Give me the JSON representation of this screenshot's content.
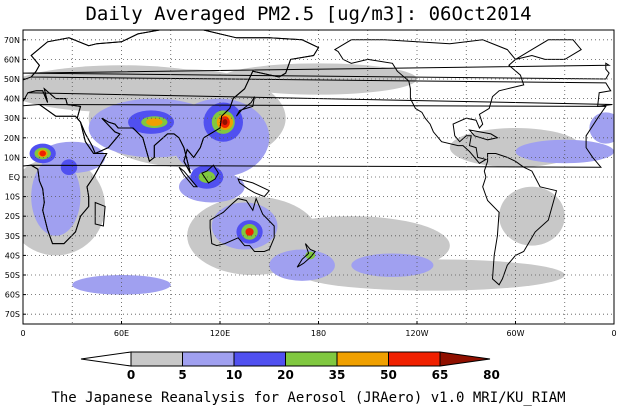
{
  "title": "Daily Averaged PM2.5 [ug/m3]: 06Oct2014",
  "footer": "The Japanese Reanalysis for Aerosol (JRAero) v1.0 MRI/KU_RIAM",
  "map": {
    "projection": "equirectangular",
    "lon_range": [
      0,
      360
    ],
    "lat_range": [
      -75,
      75
    ],
    "grid_style": "dotted",
    "lat_labels": [
      "70N",
      "60N",
      "50N",
      "40N",
      "30N",
      "20N",
      "10N",
      "EQ",
      "10S",
      "20S",
      "30S",
      "40S",
      "50S",
      "60S",
      "70S"
    ],
    "lat_values": [
      70,
      60,
      50,
      40,
      30,
      20,
      10,
      0,
      -10,
      -20,
      -30,
      -40,
      -50,
      -60,
      -70
    ],
    "lon_labels": [
      "0",
      "60E",
      "120E",
      "180",
      "120W",
      "60W",
      "0"
    ],
    "lon_values": [
      0,
      60,
      120,
      180,
      240,
      300,
      360
    ]
  },
  "colorbar": {
    "levels": [
      "0",
      "5",
      "10",
      "20",
      "35",
      "50",
      "65",
      "80"
    ],
    "colors": [
      "#ffffff",
      "#c8c8c8",
      "#a0a0f0",
      "#5050f0",
      "#80c840",
      "#f0a000",
      "#f02000",
      "#901000"
    ]
  },
  "colors": {
    "land_outline": "#000000",
    "background": "#ffffff"
  },
  "fields": [
    {
      "level": 1,
      "lon": 60,
      "lat": 45,
      "rx": 70,
      "ry": 12
    },
    {
      "level": 1,
      "lon": 100,
      "lat": 30,
      "rx": 60,
      "ry": 25
    },
    {
      "level": 1,
      "lon": 20,
      "lat": -15,
      "rx": 30,
      "ry": 25
    },
    {
      "level": 1,
      "lon": 140,
      "lat": -30,
      "rx": 40,
      "ry": 20
    },
    {
      "level": 1,
      "lon": 200,
      "lat": -35,
      "rx": 60,
      "ry": 15
    },
    {
      "level": 1,
      "lon": 300,
      "lat": 15,
      "rx": 40,
      "ry": 10
    },
    {
      "level": 1,
      "lon": 310,
      "lat": -20,
      "rx": 20,
      "ry": 15
    },
    {
      "level": 1,
      "lon": 250,
      "lat": -50,
      "rx": 80,
      "ry": 8
    },
    {
      "level": 1,
      "lon": 180,
      "lat": 50,
      "rx": 60,
      "ry": 8
    },
    {
      "level": 2,
      "lon": 80,
      "lat": 25,
      "rx": 40,
      "ry": 15
    },
    {
      "level": 2,
      "lon": 120,
      "lat": 20,
      "rx": 30,
      "ry": 20
    },
    {
      "level": 2,
      "lon": 30,
      "lat": 10,
      "rx": 20,
      "ry": 8
    },
    {
      "level": 2,
      "lon": 20,
      "lat": -10,
      "rx": 15,
      "ry": 20
    },
    {
      "level": 2,
      "lon": 135,
      "lat": -25,
      "rx": 20,
      "ry": 12
    },
    {
      "level": 2,
      "lon": 115,
      "lat": -5,
      "rx": 20,
      "ry": 8
    },
    {
      "level": 2,
      "lon": 330,
      "lat": 13,
      "rx": 30,
      "ry": 6
    },
    {
      "level": 2,
      "lon": 355,
      "lat": 25,
      "rx": 10,
      "ry": 8
    },
    {
      "level": 2,
      "lon": 170,
      "lat": -45,
      "rx": 20,
      "ry": 8
    },
    {
      "level": 2,
      "lon": 60,
      "lat": -55,
      "rx": 30,
      "ry": 5
    },
    {
      "level": 2,
      "lon": 225,
      "lat": -45,
      "rx": 25,
      "ry": 6
    },
    {
      "level": 3,
      "lon": 12,
      "lat": 12,
      "rx": 8,
      "ry": 5
    },
    {
      "level": 3,
      "lon": 78,
      "lat": 28,
      "rx": 14,
      "ry": 6
    },
    {
      "level": 3,
      "lon": 122,
      "lat": 28,
      "rx": 12,
      "ry": 10
    },
    {
      "level": 3,
      "lon": 112,
      "lat": 0,
      "rx": 10,
      "ry": 6
    },
    {
      "level": 3,
      "lon": 138,
      "lat": -28,
      "rx": 8,
      "ry": 6
    },
    {
      "level": 3,
      "lon": 28,
      "lat": 5,
      "rx": 5,
      "ry": 4
    },
    {
      "level": 4,
      "lon": 12,
      "lat": 12,
      "rx": 5,
      "ry": 3
    },
    {
      "level": 4,
      "lon": 80,
      "lat": 28,
      "rx": 8,
      "ry": 3
    },
    {
      "level": 4,
      "lon": 122,
      "lat": 28,
      "rx": 7,
      "ry": 6
    },
    {
      "level": 4,
      "lon": 112,
      "lat": 0,
      "rx": 5,
      "ry": 3
    },
    {
      "level": 4,
      "lon": 138,
      "lat": -28,
      "rx": 5,
      "ry": 4
    },
    {
      "level": 4,
      "lon": 175,
      "lat": -40,
      "rx": 3,
      "ry": 2
    },
    {
      "level": 5,
      "lon": 12,
      "lat": 12,
      "rx": 3,
      "ry": 2
    },
    {
      "level": 5,
      "lon": 80,
      "lat": 28,
      "rx": 5,
      "ry": 2
    },
    {
      "level": 5,
      "lon": 123,
      "lat": 28,
      "rx": 5,
      "ry": 4
    },
    {
      "level": 6,
      "lon": 12,
      "lat": 12,
      "rx": 2,
      "ry": 1.5
    },
    {
      "level": 6,
      "lon": 123,
      "lat": 28,
      "rx": 3,
      "ry": 3
    },
    {
      "level": 6,
      "lon": 138,
      "lat": -28,
      "rx": 2.5,
      "ry": 2
    },
    {
      "level": 7,
      "lon": 123,
      "lat": 28,
      "rx": 1.5,
      "ry": 1.5
    }
  ],
  "land": [
    [
      [
        -10,
        36
      ],
      [
        -9,
        43
      ],
      [
        -2,
        44
      ],
      [
        -5,
        48
      ],
      [
        5,
        51
      ],
      [
        8,
        54
      ],
      [
        10,
        57
      ],
      [
        5,
        62
      ],
      [
        15,
        69
      ],
      [
        28,
        71
      ],
      [
        40,
        67
      ],
      [
        45,
        68
      ],
      [
        60,
        69
      ],
      [
        70,
        73
      ],
      [
        90,
        76
      ],
      [
        110,
        75
      ],
      [
        130,
        71
      ],
      [
        150,
        71
      ],
      [
        170,
        70
      ],
      [
        180,
        66
      ],
      [
        177,
        62
      ],
      [
        163,
        60
      ],
      [
        160,
        53
      ],
      [
        156,
        51
      ],
      [
        140,
        54
      ],
      [
        135,
        45
      ],
      [
        128,
        40
      ],
      [
        126,
        35
      ],
      [
        121,
        31
      ],
      [
        120,
        25
      ],
      [
        110,
        20
      ],
      [
        108,
        15
      ],
      [
        104,
        10
      ],
      [
        100,
        14
      ],
      [
        98,
        8
      ],
      [
        102,
        2
      ],
      [
        98,
        15
      ],
      [
        95,
        20
      ],
      [
        92,
        22
      ],
      [
        88,
        22
      ],
      [
        80,
        16
      ],
      [
        80,
        10
      ],
      [
        77,
        8
      ],
      [
        73,
        20
      ],
      [
        67,
        25
      ],
      [
        58,
        25
      ],
      [
        56,
        27
      ],
      [
        52,
        28
      ],
      [
        48,
        30
      ],
      [
        56,
        23
      ],
      [
        59,
        22
      ],
      [
        52,
        15
      ],
      [
        44,
        12
      ],
      [
        42,
        16
      ],
      [
        38,
        22
      ],
      [
        35,
        28
      ],
      [
        33,
        30
      ],
      [
        35,
        36
      ],
      [
        27,
        37
      ],
      [
        26,
        40
      ],
      [
        20,
        40
      ],
      [
        13,
        45
      ],
      [
        15,
        38
      ],
      [
        12,
        44
      ],
      [
        8,
        44
      ],
      [
        3,
        43
      ],
      [
        -1,
        37
      ],
      [
        -10,
        36
      ]
    ],
    [
      [
        -17,
        21
      ],
      [
        -17,
        15
      ],
      [
        -13,
        10
      ],
      [
        -8,
        5
      ],
      [
        5,
        6
      ],
      [
        9,
        4
      ],
      [
        10,
        -2
      ],
      [
        12,
        -6
      ],
      [
        13,
        -13
      ],
      [
        12,
        -17
      ],
      [
        15,
        -27
      ],
      [
        18,
        -34
      ],
      [
        25,
        -34
      ],
      [
        32,
        -28
      ],
      [
        35,
        -20
      ],
      [
        40,
        -15
      ],
      [
        40,
        -10
      ],
      [
        39,
        -5
      ],
      [
        43,
        0
      ],
      [
        51,
        12
      ],
      [
        43,
        12
      ],
      [
        38,
        18
      ],
      [
        35,
        28
      ],
      [
        32,
        31
      ],
      [
        20,
        31
      ],
      [
        10,
        37
      ],
      [
        -5,
        36
      ],
      [
        -10,
        30
      ],
      [
        -17,
        21
      ]
    ],
    [
      [
        114,
        -22
      ],
      [
        114,
        -26
      ],
      [
        115,
        -34
      ],
      [
        118,
        -35
      ],
      [
        123,
        -34
      ],
      [
        131,
        -31
      ],
      [
        135,
        -35
      ],
      [
        138,
        -35
      ],
      [
        141,
        -38
      ],
      [
        147,
        -38
      ],
      [
        150,
        -37
      ],
      [
        153,
        -31
      ],
      [
        153,
        -25
      ],
      [
        146,
        -19
      ],
      [
        142,
        -11
      ],
      [
        140,
        -17
      ],
      [
        136,
        -12
      ],
      [
        131,
        -11
      ],
      [
        127,
        -14
      ],
      [
        122,
        -18
      ],
      [
        114,
        -22
      ]
    ],
    [
      [
        172,
        -34
      ],
      [
        175,
        -37
      ],
      [
        178,
        -38
      ],
      [
        175,
        -41
      ],
      [
        171,
        -44
      ],
      [
        167,
        -46
      ],
      [
        170,
        -42
      ],
      [
        174,
        -39
      ],
      [
        172,
        -34
      ]
    ],
    [
      [
        95,
        5
      ],
      [
        98,
        3
      ],
      [
        102,
        -1
      ],
      [
        106,
        -5
      ],
      [
        104,
        -5
      ],
      [
        101,
        -2
      ],
      [
        98,
        1
      ],
      [
        95,
        5
      ]
    ],
    [
      [
        109,
        2
      ],
      [
        113,
        -3
      ],
      [
        117,
        -1
      ],
      [
        119,
        2
      ],
      [
        116,
        6
      ],
      [
        112,
        3
      ],
      [
        109,
        2
      ]
    ],
    [
      [
        131,
        -1
      ],
      [
        140,
        -3
      ],
      [
        150,
        -7
      ],
      [
        147,
        -10
      ],
      [
        141,
        -8
      ],
      [
        137,
        -6
      ],
      [
        132,
        -3
      ],
      [
        131,
        -1
      ]
    ],
    [
      [
        130,
        31
      ],
      [
        132,
        34
      ],
      [
        136,
        35
      ],
      [
        140,
        36
      ],
      [
        141,
        41
      ],
      [
        139,
        38
      ],
      [
        136,
        36
      ],
      [
        133,
        34
      ],
      [
        130,
        31
      ]
    ],
    [
      [
        190,
        65
      ],
      [
        200,
        70
      ],
      [
        220,
        70
      ],
      [
        240,
        69
      ],
      [
        260,
        68
      ],
      [
        280,
        70
      ],
      [
        295,
        65
      ],
      [
        300,
        60
      ],
      [
        296,
        57
      ],
      [
        303,
        52
      ],
      [
        305,
        47
      ],
      [
        295,
        45
      ],
      [
        290,
        44
      ],
      [
        286,
        41
      ],
      [
        284,
        35
      ],
      [
        278,
        32
      ],
      [
        280,
        27
      ],
      [
        278,
        25
      ],
      [
        276,
        29
      ],
      [
        270,
        30
      ],
      [
        262,
        27
      ],
      [
        263,
        21
      ],
      [
        266,
        18
      ],
      [
        270,
        21
      ],
      [
        273,
        21
      ],
      [
        272,
        16
      ],
      [
        276,
        15
      ],
      [
        277,
        10
      ],
      [
        282,
        9
      ],
      [
        278,
        7
      ],
      [
        277,
        8
      ],
      [
        275,
        10
      ],
      [
        272,
        13
      ],
      [
        268,
        16
      ],
      [
        265,
        16
      ],
      [
        255,
        18
      ],
      [
        250,
        23
      ],
      [
        248,
        27
      ],
      [
        245,
        30
      ],
      [
        243,
        33
      ],
      [
        239,
        35
      ],
      [
        236,
        40
      ],
      [
        236,
        45
      ],
      [
        235,
        49
      ],
      [
        228,
        54
      ],
      [
        225,
        58
      ],
      [
        210,
        60
      ],
      [
        200,
        58
      ],
      [
        195,
        60
      ],
      [
        192,
        64
      ],
      [
        190,
        65
      ]
    ],
    [
      [
        283,
        12
      ],
      [
        288,
        12
      ],
      [
        295,
        10
      ],
      [
        300,
        8
      ],
      [
        305,
        5
      ],
      [
        310,
        3
      ],
      [
        315,
        -5
      ],
      [
        325,
        -7
      ],
      [
        320,
        -22
      ],
      [
        312,
        -28
      ],
      [
        305,
        -38
      ],
      [
        300,
        -40
      ],
      [
        295,
        -45
      ],
      [
        292,
        -52
      ],
      [
        290,
        -55
      ],
      [
        286,
        -52
      ],
      [
        287,
        -40
      ],
      [
        289,
        -30
      ],
      [
        290,
        -18
      ],
      [
        283,
        -12
      ],
      [
        280,
        -5
      ],
      [
        282,
        0
      ],
      [
        281,
        3
      ],
      [
        283,
        8
      ],
      [
        283,
        12
      ]
    ],
    [
      [
        300,
        60
      ],
      [
        310,
        65
      ],
      [
        320,
        70
      ],
      [
        335,
        70
      ],
      [
        340,
        65
      ],
      [
        330,
        60
      ],
      [
        318,
        60
      ],
      [
        310,
        62
      ],
      [
        300,
        60
      ]
    ],
    [
      [
        -5,
        50
      ],
      [
        0,
        53
      ],
      [
        -3,
        57
      ],
      [
        -5,
        58
      ],
      [
        -5,
        55
      ],
      [
        -3,
        53
      ],
      [
        -5,
        50
      ]
    ],
    [
      [
        272,
        24
      ],
      [
        285,
        22
      ],
      [
        289,
        20
      ],
      [
        283,
        19
      ],
      [
        275,
        21
      ],
      [
        272,
        24
      ]
    ],
    [
      [
        44,
        -13
      ],
      [
        50,
        -15
      ],
      [
        49,
        -25
      ],
      [
        44,
        -24
      ],
      [
        44,
        -13
      ]
    ]
  ]
}
